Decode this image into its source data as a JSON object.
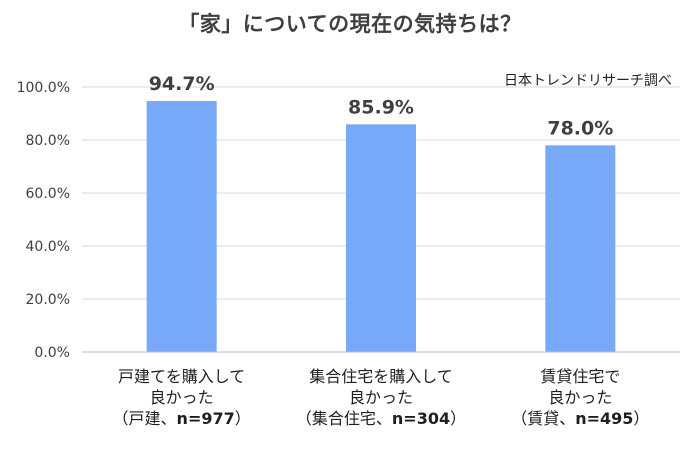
{
  "chart_data": {
    "type": "bar",
    "title": "「家」についての現在の気持ちは？",
    "source": "日本トレンドリサーチ調べ",
    "categories": [
      {
        "lines": [
          "戸建てを購入して",
          "良かった"
        ],
        "note_group": "（戸建、",
        "note_n": "n=977",
        "note_close": "）"
      },
      {
        "lines": [
          "集合住宅を購入して",
          "良かった"
        ],
        "note_group": "（集合住宅、",
        "note_n": "n=304",
        "note_close": "）"
      },
      {
        "lines": [
          "賃貸住宅で",
          "良かった"
        ],
        "note_group": "（賃貸、",
        "note_n": "n=495",
        "note_close": "）"
      }
    ],
    "values": [
      94.7,
      85.9,
      78.0
    ],
    "data_labels": [
      "94.7%",
      "85.9%",
      "78.0%"
    ],
    "ylim": [
      0,
      100
    ],
    "yticks": [
      0,
      20,
      40,
      60,
      80,
      100
    ],
    "ytick_labels": [
      "0.0%",
      "20.0%",
      "40.0%",
      "60.0%",
      "80.0%",
      "100.0%"
    ],
    "xlabel": "",
    "ylabel": "",
    "grid": true,
    "colors": {
      "bar": "#78a8f8",
      "grid": "#d9d9d9",
      "axis": "#bfbfbf",
      "text": "#3f3f3f"
    }
  }
}
